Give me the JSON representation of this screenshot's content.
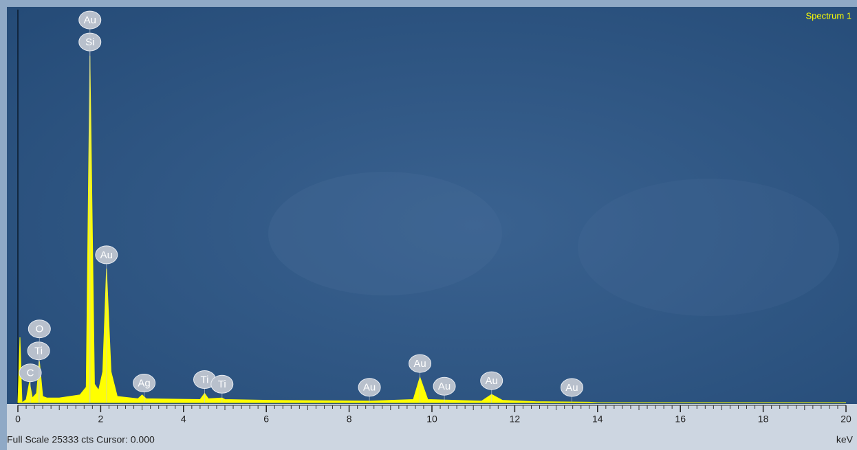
{
  "chart_data": {
    "type": "area",
    "title": "Spectrum 1",
    "x_label": "keV",
    "footer": "Full Scale 25333 cts Cursor: 0.000",
    "color": "#ffff00",
    "xlim": [
      0,
      20
    ],
    "xticks": [
      0,
      2,
      4,
      6,
      8,
      10,
      12,
      14,
      16,
      18,
      20
    ],
    "ylim": [
      0,
      25333
    ],
    "x": [
      0,
      0.05,
      0.1,
      0.2,
      0.28,
      0.35,
      0.45,
      0.52,
      0.6,
      0.7,
      1.0,
      1.5,
      1.65,
      1.74,
      1.85,
      1.95,
      2.05,
      2.14,
      2.25,
      2.4,
      2.9,
      3.0,
      3.1,
      4.4,
      4.51,
      4.6,
      4.93,
      5.0,
      6.0,
      8.5,
      9.55,
      9.71,
      9.9,
      11.2,
      11.44,
      11.7,
      12.5,
      13.8,
      14.0,
      20
    ],
    "values": [
      0,
      4220,
      0,
      200,
      1330,
      300,
      600,
      2670,
      400,
      300,
      300,
      500,
      1000,
      22440,
      1200,
      800,
      2000,
      8670,
      2000,
      400,
      250,
      500,
      250,
      200,
      600,
      250,
      300,
      200,
      150,
      100,
      200,
      1640,
      200,
      100,
      530,
      150,
      60,
      30,
      0,
      0
    ],
    "annotations": [
      {
        "text": "C",
        "x": 0.3
      },
      {
        "text": "Ti",
        "x": 0.5
      },
      {
        "text": "O",
        "x": 0.52
      },
      {
        "text": "Si",
        "x": 1.74
      },
      {
        "text": "Au",
        "x": 1.74
      },
      {
        "text": "Au",
        "x": 2.14
      },
      {
        "text": "Ag",
        "x": 3.05
      },
      {
        "text": "Ti",
        "x": 4.51
      },
      {
        "text": "Ti",
        "x": 4.93
      },
      {
        "text": "Au",
        "x": 8.49
      },
      {
        "text": "Au",
        "x": 9.71
      },
      {
        "text": "Au",
        "x": 10.3
      },
      {
        "text": "Au",
        "x": 11.44
      },
      {
        "text": "Au",
        "x": 13.38
      }
    ]
  }
}
